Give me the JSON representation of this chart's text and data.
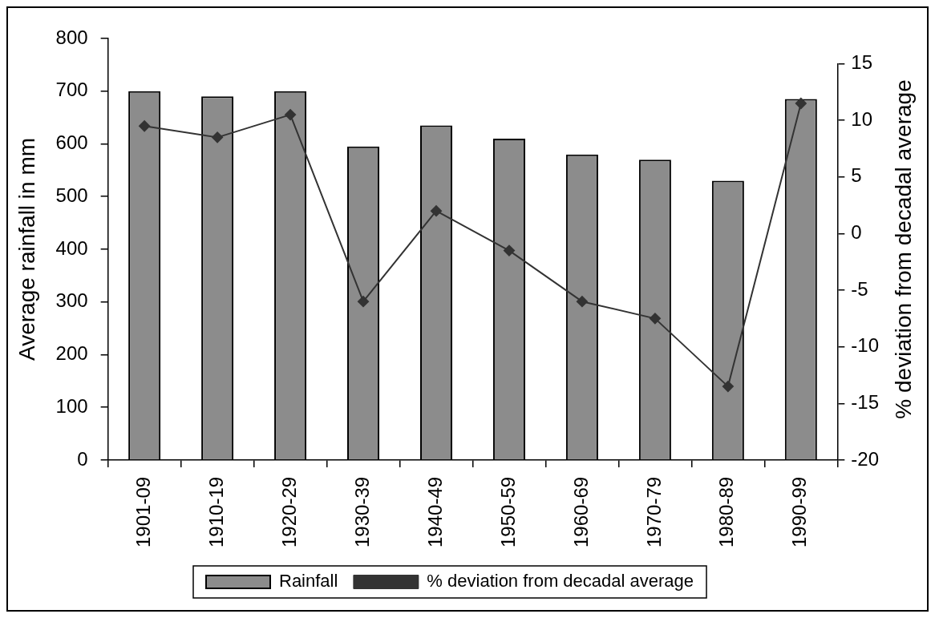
{
  "chart_data": {
    "type": "bar",
    "categories": [
      "1901-09",
      "1910-19",
      "1920-29",
      "1930-39",
      "1940-49",
      "1950-59",
      "1960-69",
      "1970-79",
      "1980-89",
      "1990-99"
    ],
    "ylabel": "Average rainfall in mm",
    "y2label": "% deviation from decadal average",
    "ylim": [
      0,
      800
    ],
    "yticks": [
      0,
      100,
      200,
      300,
      400,
      500,
      600,
      700,
      800
    ],
    "y2lim": [
      -20,
      15
    ],
    "y2ticks": [
      -20,
      -15,
      -10,
      -5,
      0,
      5,
      10,
      15
    ],
    "legend": "bottom",
    "series": [
      {
        "name": "Rainfall",
        "color": "#8c8c8c",
        "values": [
          700,
          690,
          700,
          595,
          635,
          610,
          580,
          570,
          530,
          685
        ]
      },
      {
        "name": "% deviation from decadal average",
        "type": "line",
        "axis": "y2",
        "color": "#333333",
        "marker": "diamond",
        "line_style": "solid",
        "values": [
          9.5,
          8.5,
          10.5,
          -6,
          2,
          -1.5,
          -6,
          -7.5,
          -13.5,
          11.5
        ]
      }
    ]
  }
}
